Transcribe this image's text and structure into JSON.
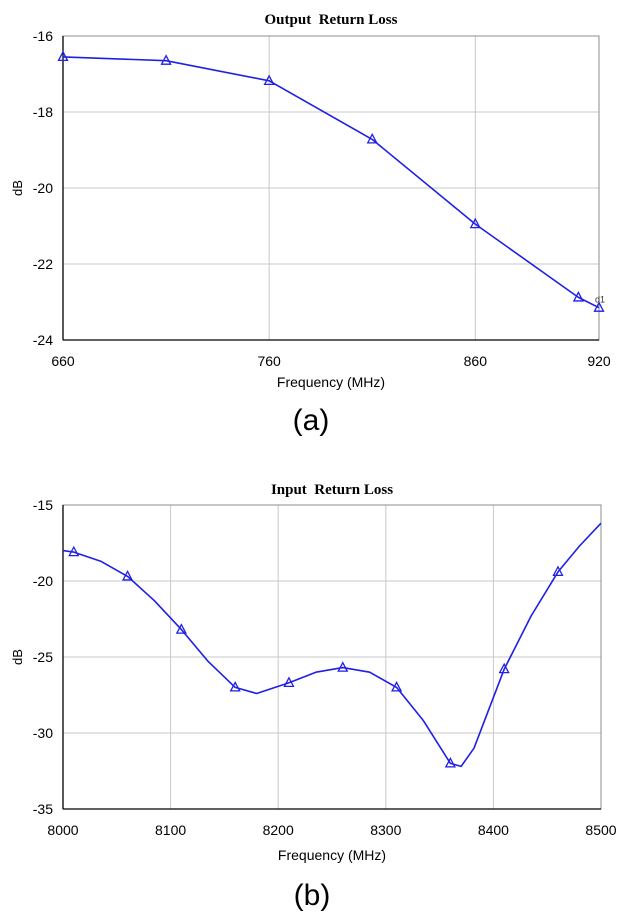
{
  "colors": {
    "series": "#1f1fe6",
    "grid": "#c8c8c8",
    "axis": "#000000",
    "text": "#000000"
  },
  "marker_icon": "triangle-marker-icon",
  "chart_data": [
    {
      "type": "line",
      "title": "Output  Return Loss",
      "xlabel": "Frequency (MHz)",
      "ylabel": "dB",
      "caption": "(a)",
      "xlim": [
        660,
        920
      ],
      "ylim": [
        -24,
        -16
      ],
      "xticks": [
        660,
        760,
        860,
        920
      ],
      "xtick_labels": [
        "660",
        "760",
        "860",
        "920"
      ],
      "yticks": [
        -24,
        -22,
        -20,
        -18,
        -16
      ],
      "ytick_labels": [
        "-24",
        "-22",
        "-20",
        "-18",
        "-16"
      ],
      "grid": true,
      "marker_label": {
        "text": "d1",
        "x": 920,
        "y": -23.15
      },
      "series": [
        {
          "curve": [
            [
              660,
              -16.55
            ],
            [
              710,
              -16.65
            ],
            [
              760,
              -17.18
            ],
            [
              810,
              -18.72
            ],
            [
              860,
              -20.95
            ],
            [
              910,
              -22.88
            ],
            [
              920,
              -23.15
            ]
          ],
          "markers": [
            [
              660,
              -16.55
            ],
            [
              710,
              -16.65
            ],
            [
              760,
              -17.18
            ],
            [
              810,
              -18.72
            ],
            [
              860,
              -20.95
            ],
            [
              910,
              -22.88
            ],
            [
              920,
              -23.15
            ]
          ]
        }
      ]
    },
    {
      "type": "line",
      "title": "Input  Return Loss",
      "xlabel": "Frequency (MHz)",
      "ylabel": "dB",
      "caption": "(b)",
      "xlim": [
        8000,
        8500
      ],
      "ylim": [
        -35,
        -15
      ],
      "xticks": [
        8000,
        8100,
        8200,
        8300,
        8400,
        8500
      ],
      "xtick_labels": [
        "8000",
        "8100",
        "8200",
        "8300",
        "8400",
        "8500"
      ],
      "yticks": [
        -35,
        -30,
        -25,
        -20,
        -15
      ],
      "ytick_labels": [
        "-35",
        "-30",
        "-25",
        "-20",
        "-15"
      ],
      "grid": true,
      "series": [
        {
          "curve": [
            [
              8000,
              -18.0
            ],
            [
              8010,
              -18.1
            ],
            [
              8035,
              -18.7
            ],
            [
              8060,
              -19.7
            ],
            [
              8085,
              -21.3
            ],
            [
              8110,
              -23.2
            ],
            [
              8135,
              -25.3
            ],
            [
              8160,
              -27.0
            ],
            [
              8180,
              -27.4
            ],
            [
              8210,
              -26.7
            ],
            [
              8235,
              -26.0
            ],
            [
              8260,
              -25.7
            ],
            [
              8285,
              -26.0
            ],
            [
              8310,
              -27.0
            ],
            [
              8335,
              -29.2
            ],
            [
              8360,
              -32.0
            ],
            [
              8370,
              -32.2
            ],
            [
              8382,
              -31.0
            ],
            [
              8410,
              -25.8
            ],
            [
              8435,
              -22.3
            ],
            [
              8460,
              -19.4
            ],
            [
              8480,
              -17.7
            ],
            [
              8500,
              -16.2
            ]
          ],
          "markers": [
            [
              8010,
              -18.1
            ],
            [
              8060,
              -19.7
            ],
            [
              8110,
              -23.2
            ],
            [
              8160,
              -27.0
            ],
            [
              8210,
              -26.7
            ],
            [
              8260,
              -25.7
            ],
            [
              8310,
              -27.0
            ],
            [
              8360,
              -32.0
            ],
            [
              8410,
              -25.8
            ],
            [
              8460,
              -19.4
            ]
          ]
        }
      ]
    }
  ]
}
